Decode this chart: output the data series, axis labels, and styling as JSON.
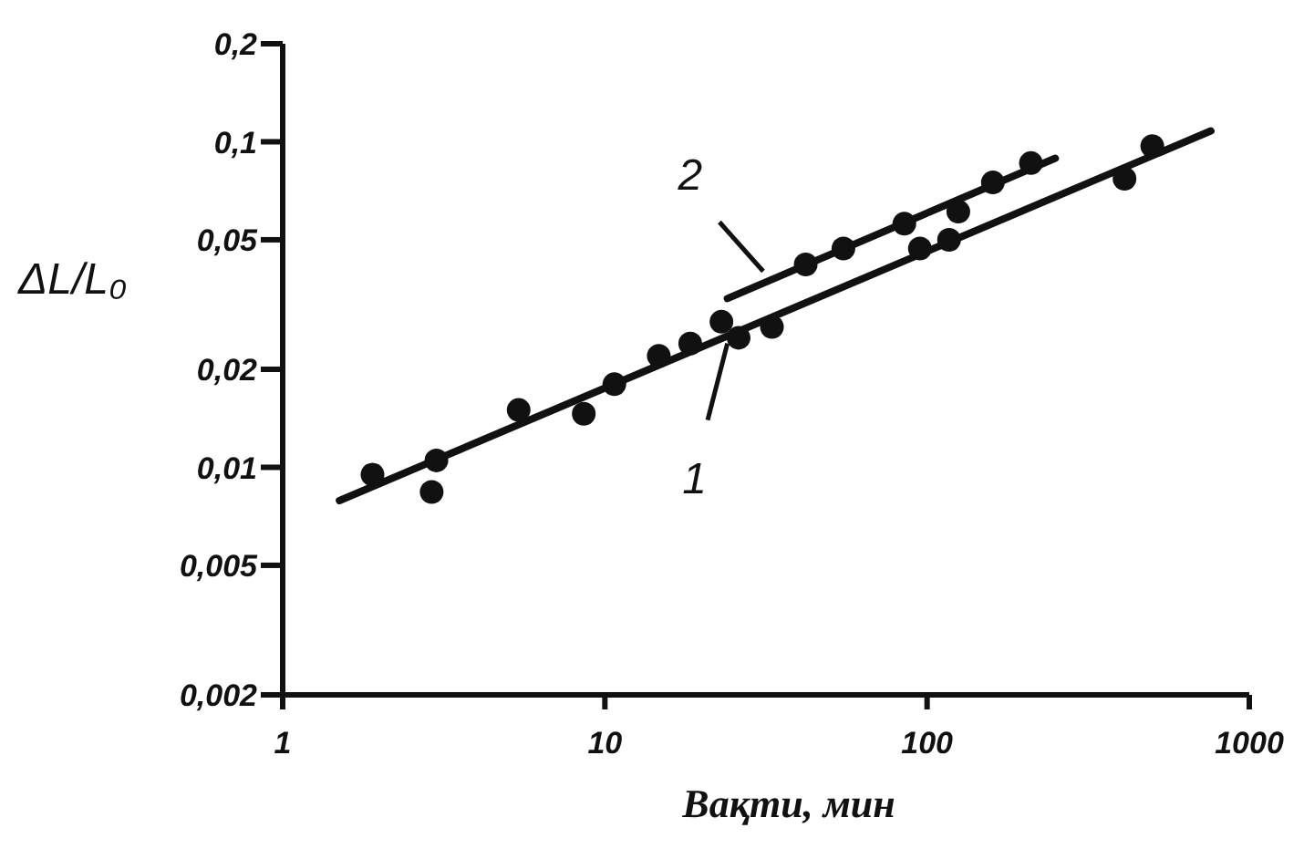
{
  "chart_data": {
    "type": "scatter",
    "xlabel": "Вақти, мин",
    "ylabel": "ΔL/L₀",
    "log": "xy",
    "marker": "circle",
    "xlim": [
      1,
      1000
    ],
    "xticks": [
      1,
      10,
      100,
      1000
    ],
    "ylim": [
      0.002,
      0.2
    ],
    "yticks": [
      {
        "value": 0.002,
        "label": "0,002"
      },
      {
        "value": 0.005,
        "label": "0,005"
      },
      {
        "value": 0.01,
        "label": "0,01"
      },
      {
        "value": 0.02,
        "label": "0,02"
      },
      {
        "value": 0.05,
        "label": "0,05"
      },
      {
        "value": 0.1,
        "label": "0,1"
      },
      {
        "value": 0.2,
        "label": "0,2"
      }
    ],
    "series": [
      {
        "color": "#111111",
        "x": [
          1.9,
          2.9,
          3.0,
          5.4,
          8.6,
          10.7,
          14.7,
          18.4,
          23,
          26,
          33,
          42,
          55,
          85,
          95,
          117,
          125,
          160,
          210,
          410,
          500
        ],
        "values": [
          0.0095,
          0.0084,
          0.0105,
          0.015,
          0.0146,
          0.018,
          0.022,
          0.024,
          0.028,
          0.025,
          0.027,
          0.042,
          0.047,
          0.056,
          0.047,
          0.05,
          0.061,
          0.075,
          0.086,
          0.077,
          0.097
        ]
      },
      {
        "type": "line",
        "marker": "none",
        "color": "#111111",
        "x": [
          1.5,
          760
        ],
        "values": [
          0.0079,
          0.108
        ]
      },
      {
        "type": "line",
        "marker": "none",
        "color": "#111111",
        "x": [
          24,
          250
        ],
        "values": [
          0.033,
          0.089
        ]
      }
    ],
    "annotations": [
      {
        "text": "1",
        "x": 24,
        "y": 0.024
      },
      {
        "text": "2",
        "x": 31,
        "y": 0.04
      }
    ]
  }
}
